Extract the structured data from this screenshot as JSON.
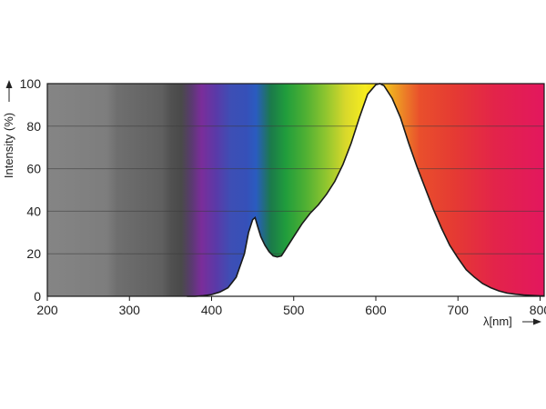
{
  "chart_data": {
    "type": "area",
    "xlabel": "λ[nm]",
    "ylabel": "Intensity (%)",
    "xlim": [
      200,
      805
    ],
    "ylim": [
      0,
      100
    ],
    "x_ticks": [
      200,
      300,
      400,
      500,
      600,
      700,
      800
    ],
    "y_ticks": [
      0,
      20,
      40,
      60,
      80,
      100
    ],
    "grid": true,
    "series": [
      {
        "x": [
          370,
          380,
          390,
          400,
          410,
          420,
          430,
          440,
          445,
          450,
          453,
          456,
          460,
          465,
          470,
          475,
          480,
          485,
          490,
          500,
          510,
          520,
          530,
          540,
          550,
          560,
          570,
          580,
          590,
          600,
          605,
          610,
          620,
          630,
          640,
          650,
          660,
          670,
          680,
          690,
          700,
          710,
          720,
          730,
          740,
          750,
          760,
          770,
          780,
          790,
          800,
          805
        ],
        "y": [
          0,
          0,
          0.3,
          0.8,
          2,
          4,
          9,
          20,
          30,
          36,
          37,
          33,
          28,
          24,
          21,
          19,
          18.5,
          19,
          22,
          28,
          34,
          39,
          43,
          48,
          54,
          62,
          72,
          84,
          95,
          99.5,
          100,
          99,
          93,
          84,
          72,
          61,
          51,
          41,
          32,
          24,
          18,
          12.5,
          9,
          6,
          4,
          2.5,
          1.5,
          1,
          0.6,
          0.4,
          0.2,
          0.2
        ]
      }
    ]
  }
}
